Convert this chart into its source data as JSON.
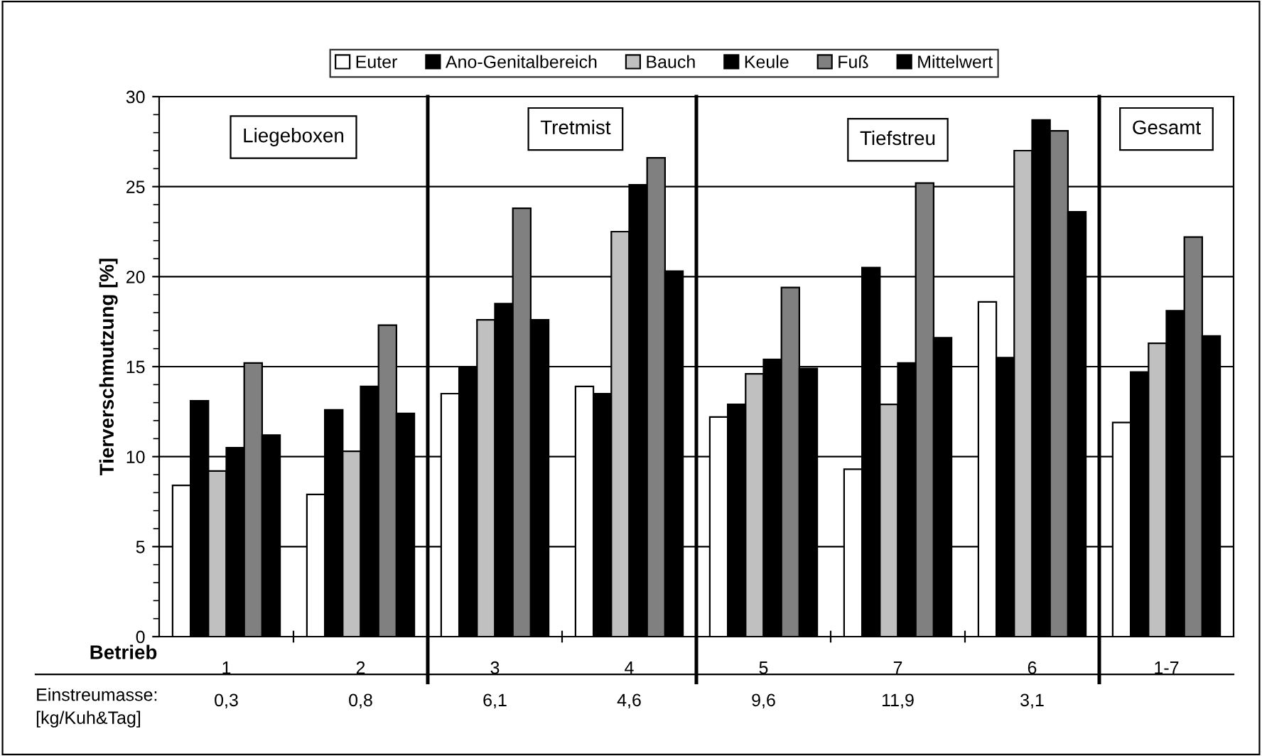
{
  "chart_data": {
    "type": "bar",
    "ylabel": "Tierverschmutzung [%]",
    "xlabel": "Betrieb",
    "categories": [
      "1",
      "2",
      "3",
      "4",
      "5",
      "7",
      "6",
      "1-7"
    ],
    "series": [
      {
        "name": "Euter",
        "color": "#ffffff",
        "values": [
          8.4,
          7.9,
          13.5,
          13.9,
          12.2,
          9.3,
          18.6,
          11.9
        ]
      },
      {
        "name": "Ano-Genitalbereich",
        "color": "#000000",
        "values": [
          13.1,
          12.6,
          15.0,
          13.5,
          12.9,
          20.5,
          15.5,
          14.7
        ]
      },
      {
        "name": "Bauch",
        "color": "#c0c0c0",
        "values": [
          9.2,
          10.3,
          17.6,
          22.5,
          14.6,
          12.9,
          27.0,
          16.3
        ]
      },
      {
        "name": "Keule",
        "color": "#000000",
        "values": [
          10.5,
          13.9,
          18.5,
          25.1,
          15.4,
          15.2,
          28.7,
          18.1
        ]
      },
      {
        "name": "Fuß",
        "color": "#808080",
        "values": [
          15.2,
          17.3,
          23.8,
          26.6,
          19.4,
          25.2,
          28.1,
          22.2
        ]
      },
      {
        "name": "Mittelwert",
        "color": "#000000",
        "values": [
          11.2,
          12.4,
          17.6,
          20.3,
          14.9,
          16.6,
          23.6,
          16.7
        ]
      }
    ],
    "ylim": [
      0,
      30
    ],
    "yticks": [
      0,
      5,
      10,
      15,
      20,
      25,
      30
    ],
    "grid": "y",
    "legend": "top",
    "annotations": [
      "Liegeboxen",
      "Tretmist",
      "Tiefstreu",
      "Gesamt",
      "Einstreumasse:\n[kg/Kuh&Tag]",
      "0,3",
      "0,8",
      "6,1",
      "4,6",
      "9,6",
      "11,9",
      "3,1"
    ]
  }
}
